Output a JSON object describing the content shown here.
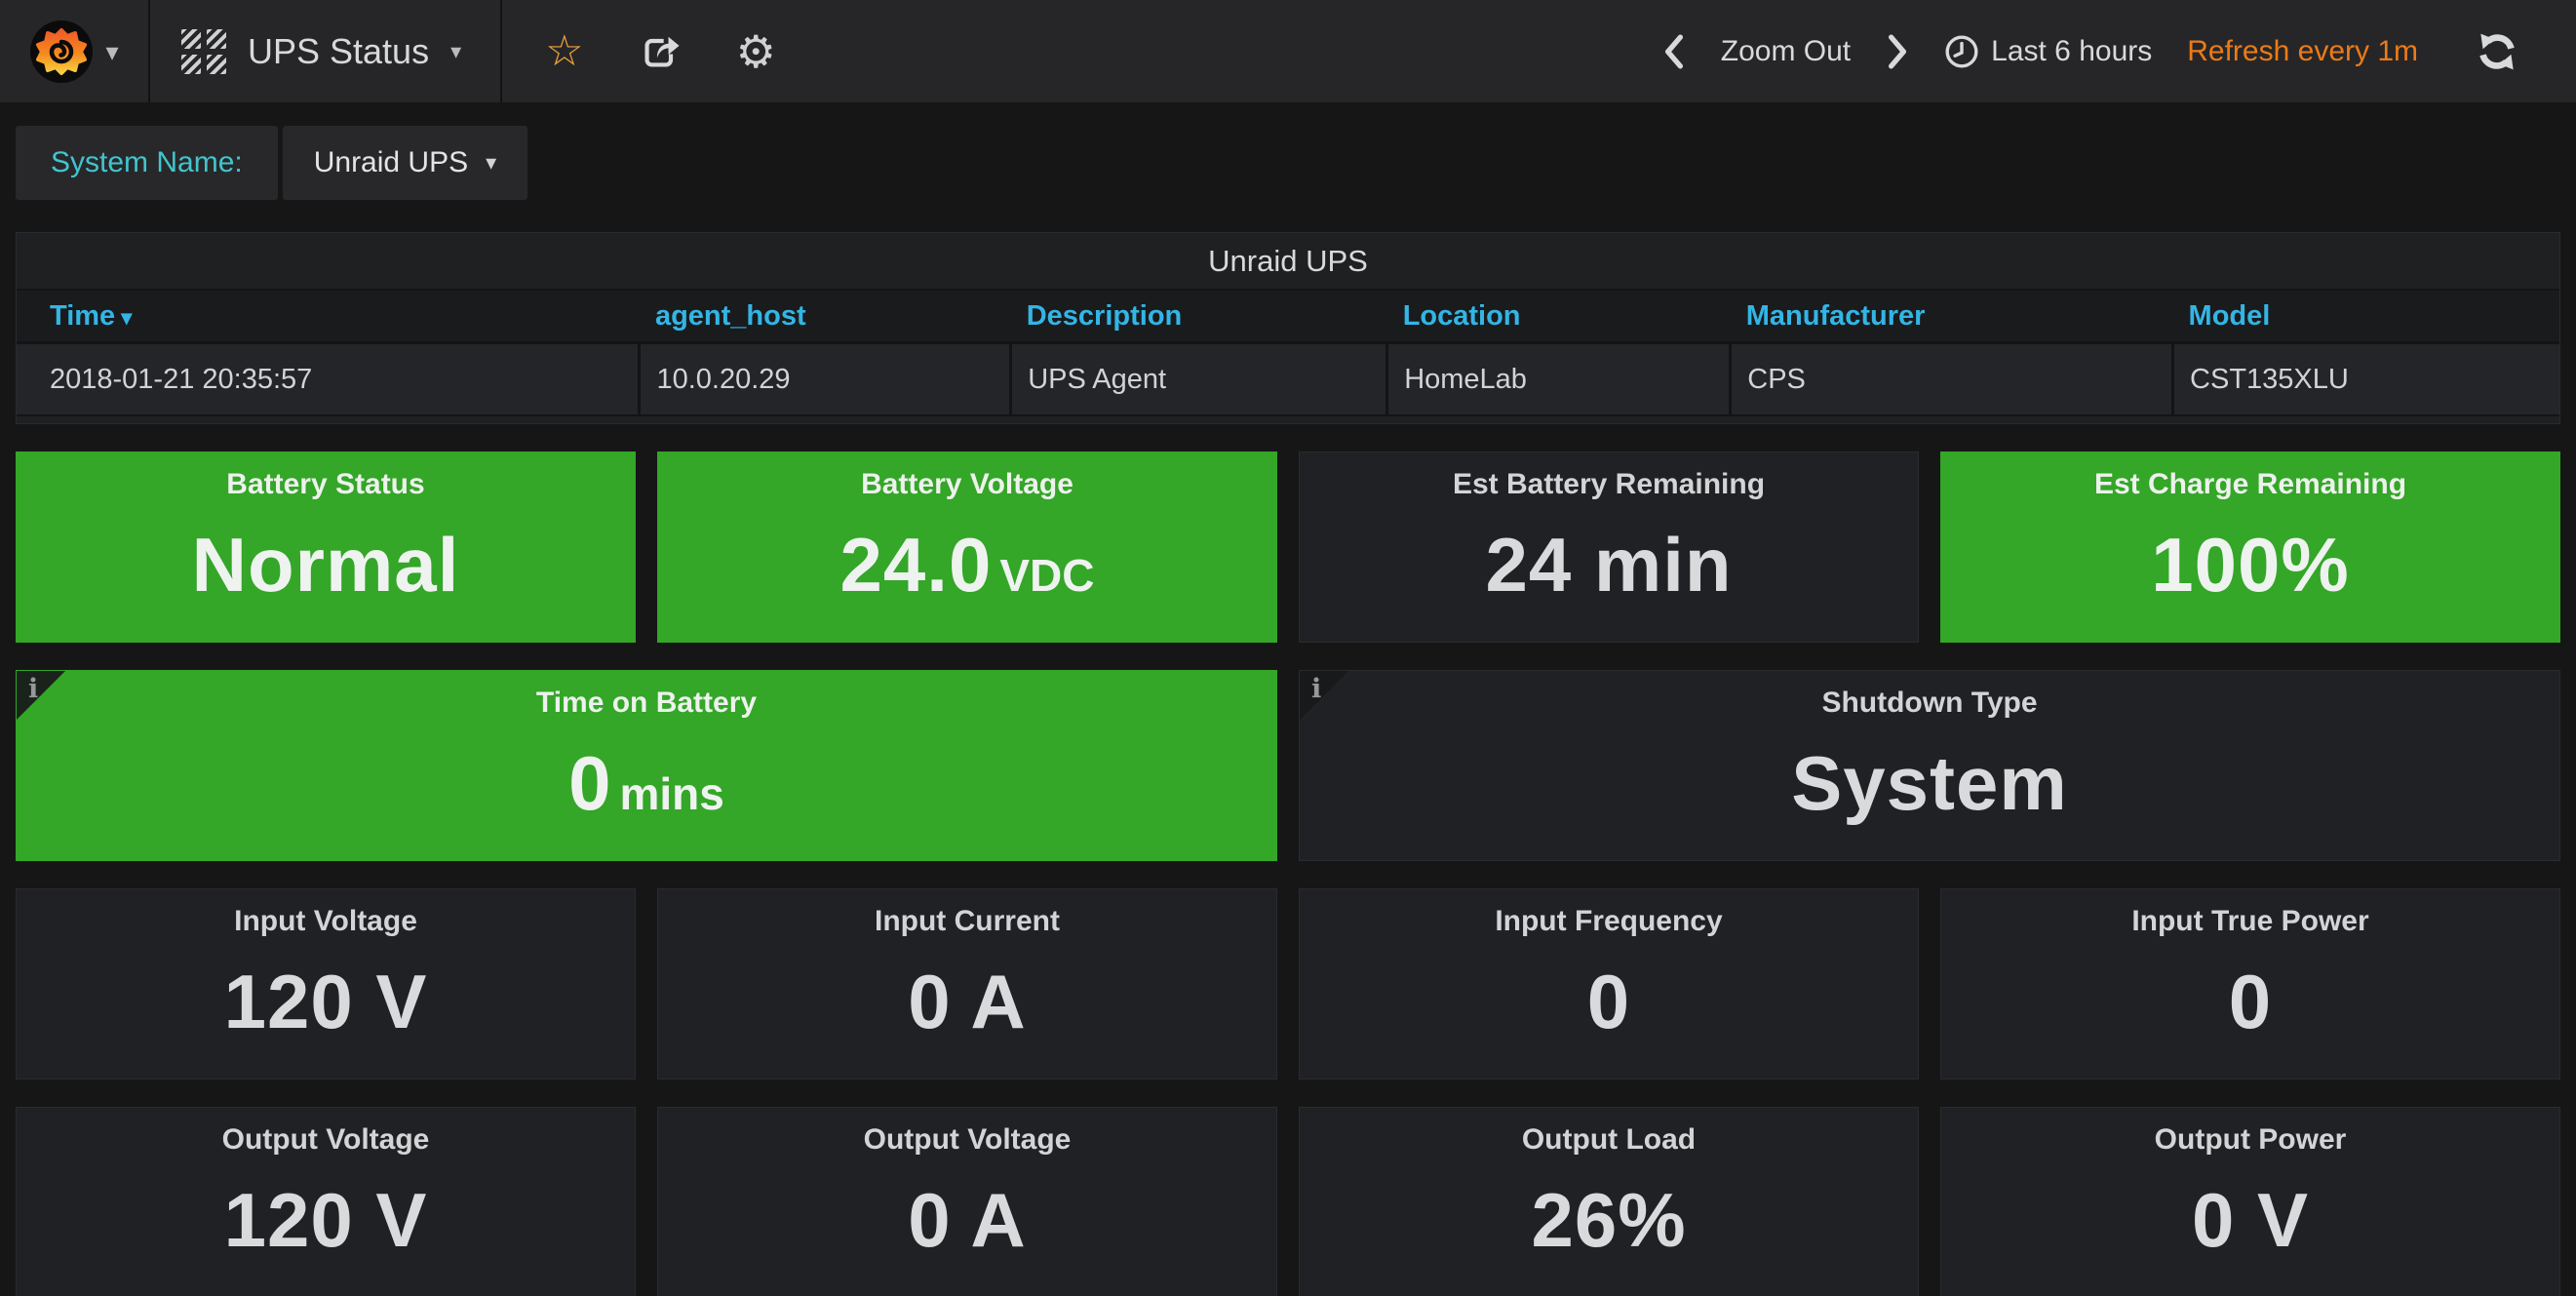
{
  "navbar": {
    "title": "UPS Status",
    "zoom_out": "Zoom Out",
    "time_range": "Last 6 hours",
    "refresh_interval": "Refresh every 1m"
  },
  "variables": {
    "label": "System Name:",
    "value": "Unraid UPS"
  },
  "table": {
    "title": "Unraid UPS",
    "columns": [
      "Time",
      "agent_host",
      "Description",
      "Location",
      "Manufacturer",
      "Model"
    ],
    "sorted_column": "Time",
    "rows": [
      [
        "2018-01-21 20:35:57",
        "10.0.20.29",
        "UPS Agent",
        "HomeLab",
        "CPS",
        "CST135XLU"
      ]
    ]
  },
  "stat_rows": [
    [
      {
        "title": "Battery Status",
        "value": "Normal",
        "postfix": "",
        "variant": "green",
        "info": false
      },
      {
        "title": "Battery Voltage",
        "value": "24.0",
        "postfix": "VDC",
        "variant": "green",
        "info": false
      },
      {
        "title": "Est Battery Remaining",
        "value": "24 min",
        "postfix": "",
        "variant": "dark",
        "info": false
      },
      {
        "title": "Est Charge Remaining",
        "value": "100%",
        "postfix": "",
        "variant": "green",
        "info": false
      }
    ],
    [
      {
        "title": "Time on Battery",
        "value": "0",
        "postfix": "mins",
        "variant": "green",
        "info": true
      },
      {
        "title": "Shutdown Type",
        "value": "System",
        "postfix": "",
        "variant": "dark",
        "info": true
      }
    ],
    [
      {
        "title": "Input Voltage",
        "value": "120 V",
        "postfix": "",
        "variant": "dark",
        "info": false
      },
      {
        "title": "Input Current",
        "value": "0 A",
        "postfix": "",
        "variant": "dark",
        "info": false
      },
      {
        "title": "Input Frequency",
        "value": "0",
        "postfix": "",
        "variant": "dark",
        "info": false
      },
      {
        "title": "Input True Power",
        "value": "0",
        "postfix": "",
        "variant": "dark",
        "info": false
      }
    ],
    [
      {
        "title": "Output Voltage",
        "value": "120 V",
        "postfix": "",
        "variant": "dark",
        "info": false
      },
      {
        "title": "Output Voltage",
        "value": "0 A",
        "postfix": "",
        "variant": "dark",
        "info": false
      },
      {
        "title": "Output Load",
        "value": "26%",
        "postfix": "",
        "variant": "dark",
        "info": false
      },
      {
        "title": "Output Power",
        "value": "0 V",
        "postfix": "",
        "variant": "dark",
        "info": false
      }
    ]
  ],
  "icons": {
    "grafana_logo": "grafana-flame",
    "dashboard_picker": "grid-icon",
    "favorite": "star-icon",
    "share": "share-icon",
    "settings": "gear-icon",
    "clock": "clock-icon",
    "refresh": "refresh-icon",
    "info": "i",
    "sort_caret": "▾",
    "dropdown_caret": "▾"
  },
  "colors": {
    "green": "#34a628",
    "blue": "#33b5e5",
    "teal": "#41c5ce",
    "orange": "#eb7b18",
    "star_orange": "#eda53a",
    "navbar_bg": "#262628",
    "page_bg": "#161617",
    "panel_bg": "#202124"
  }
}
